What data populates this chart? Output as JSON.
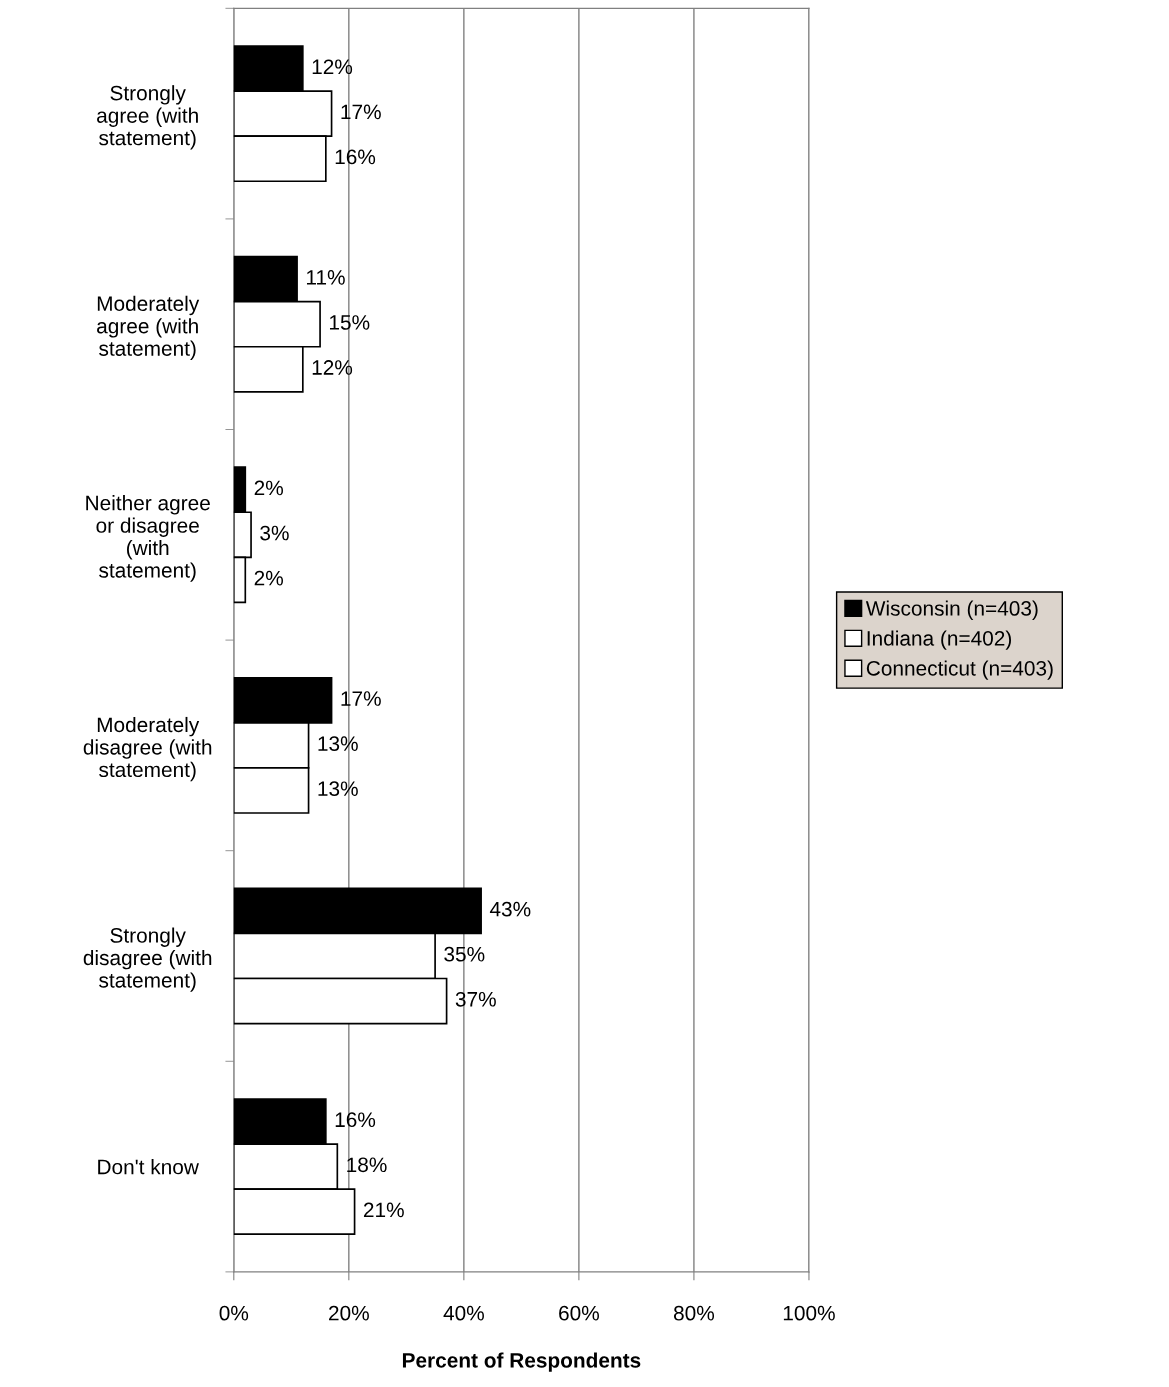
{
  "chart_data": {
    "type": "bar",
    "orientation": "horizontal",
    "categories": [
      "Strongly\nagree (with\nstatement)",
      "Moderately\nagree (with\nstatement)",
      "Neither agree\nor disagree\n(with\nstatement)",
      "Moderately\ndisagree (with\nstatement)",
      "Strongly\ndisagree (with\nstatement)",
      "Don't know"
    ],
    "series": [
      {
        "name": "Wisconsin (n=403)",
        "color": "#000000",
        "values": [
          12,
          11,
          2,
          17,
          43,
          16
        ],
        "value_labels": [
          "12%",
          "11%",
          "2%",
          "17%",
          "43%",
          "16%"
        ]
      },
      {
        "name": "Indiana (n=402)",
        "color": "#ffffff",
        "values": [
          17,
          15,
          3,
          13,
          35,
          18
        ],
        "value_labels": [
          "17%",
          "15%",
          "3%",
          "13%",
          "35%",
          "18%"
        ]
      },
      {
        "name": "Connecticut (n=403)",
        "color": "#ffffff",
        "values": [
          16,
          12,
          2,
          13,
          37,
          21
        ],
        "value_labels": [
          "16%",
          "12%",
          "2%",
          "13%",
          "37%",
          "21%"
        ]
      }
    ],
    "xlabel": "Percent of Respondents",
    "xlim": [
      0,
      100
    ],
    "xticks": [
      {
        "value": 0,
        "label": "0%"
      },
      {
        "value": 20,
        "label": "20%"
      },
      {
        "value": 40,
        "label": "40%"
      },
      {
        "value": 60,
        "label": "60%"
      },
      {
        "value": 80,
        "label": "80%"
      },
      {
        "value": 100,
        "label": "100%"
      }
    ],
    "grid": "x",
    "legend": "right"
  }
}
